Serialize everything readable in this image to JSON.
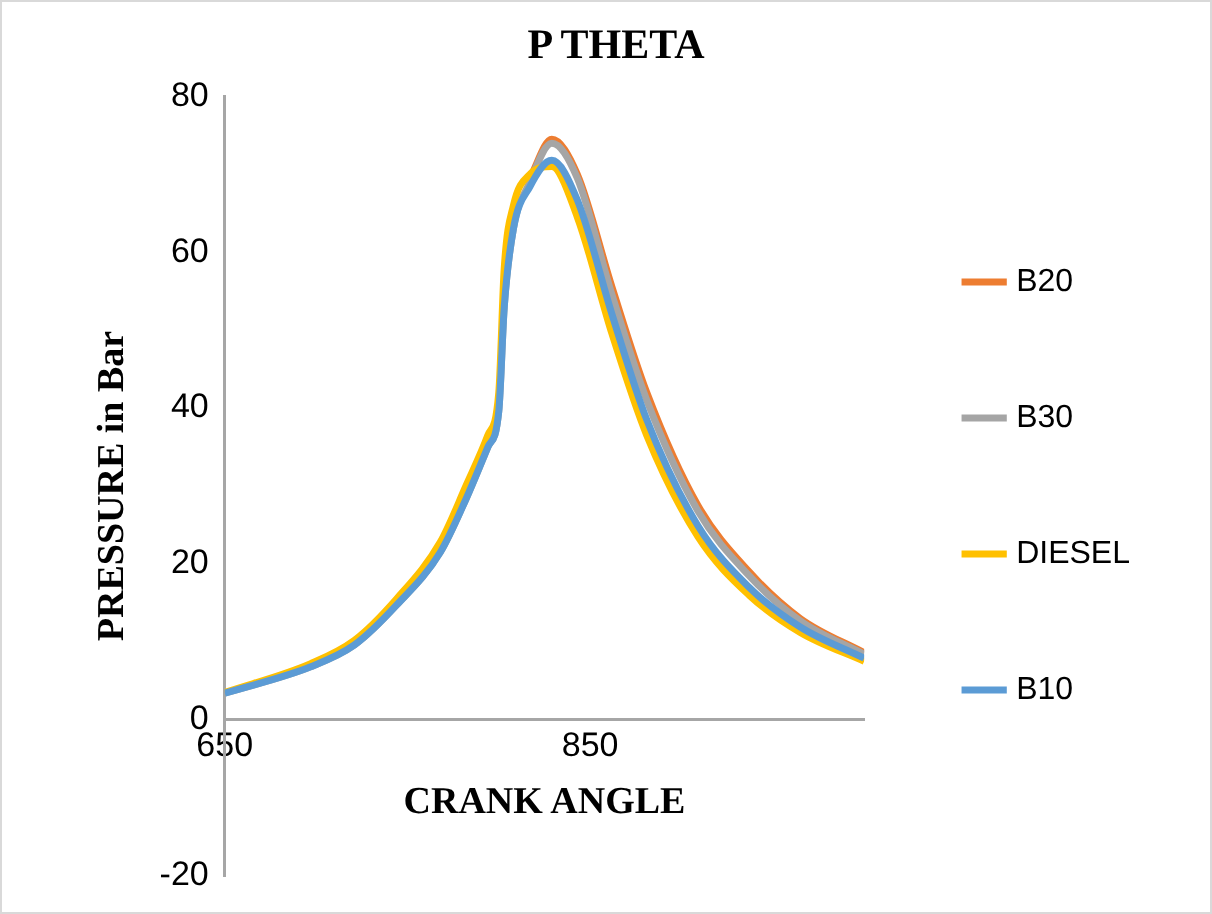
{
  "chart_data": {
    "type": "line",
    "title": "P THETA",
    "xlabel": "CRANK ANGLE",
    "ylabel": "PRESSURE in Bar",
    "x": [
      650,
      697,
      721,
      744,
      768,
      782,
      794,
      800,
      803,
      808,
      817,
      829,
      843,
      862,
      881,
      909,
      937,
      965,
      1000
    ],
    "xlim": [
      650,
      1000
    ],
    "xticks": [
      650,
      850
    ],
    "ylim": [
      -20,
      80
    ],
    "yticks": [
      -20,
      0,
      20,
      40,
      60,
      80
    ],
    "grid": false,
    "legend": "right",
    "marker": "none",
    "series": [
      {
        "name": "B20",
        "color": "#ed7d31",
        "values": [
          null,
          null,
          null,
          null,
          null,
          null,
          null,
          null,
          null,
          null,
          69.5,
          74.5,
          70,
          55.5,
          42,
          27.5,
          19,
          13,
          8.6
        ]
      },
      {
        "name": "B30",
        "color": "#a5a5a5",
        "values": [
          3.4,
          6.8,
          9.6,
          14.7,
          21.5,
          28.3,
          35,
          39.6,
          53,
          63,
          69,
          74,
          69.5,
          54.5,
          41,
          26.8,
          18.5,
          12.7,
          8.4
        ]
      },
      {
        "name": "DIESEL",
        "color": "#ffc000",
        "values": [
          3.5,
          7.2,
          10.2,
          15.5,
          22.8,
          30,
          36.5,
          42,
          58,
          66,
          70,
          71,
          64.5,
          49.5,
          36.5,
          23.5,
          16,
          11.2,
          7.5
        ]
      },
      {
        "name": "B10",
        "color": "#5b9bd5",
        "values": [
          3.4,
          6.8,
          9.6,
          14.7,
          21.5,
          28.3,
          35,
          39.6,
          53,
          63,
          68.4,
          71.8,
          66.7,
          52,
          38.5,
          24.9,
          17,
          11.9,
          7.9
        ]
      }
    ]
  }
}
